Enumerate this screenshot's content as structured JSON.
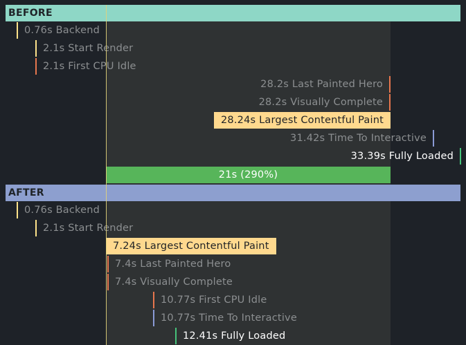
{
  "colors": {
    "before_header": "#8ed7c6",
    "after_header": "#8d9fcf",
    "delta_bar": "#57b55a",
    "highlight": "#ffd98e",
    "tick_yellow": "#ffe38a",
    "tick_orange": "#e8774e",
    "tick_blue": "#8b9bd6",
    "tick_green": "#46c27a"
  },
  "before": {
    "title": "BEFORE",
    "metrics": [
      {
        "label": "0.76s Backend",
        "time": 0.76,
        "tick": "yellow",
        "side": "right",
        "style": "dim"
      },
      {
        "label": "2.1s Start Render",
        "time": 2.1,
        "tick": "yellow",
        "side": "right",
        "style": "dim"
      },
      {
        "label": "2.1s First CPU Idle",
        "time": 2.1,
        "tick": "orange",
        "side": "right",
        "style": "dim"
      },
      {
        "label": "28.2s Last Painted Hero",
        "time": 28.2,
        "tick": "orange",
        "side": "left",
        "style": "dim"
      },
      {
        "label": "28.2s Visually Complete",
        "time": 28.2,
        "tick": "orange",
        "side": "left",
        "style": "dim"
      },
      {
        "label": "28.24s Largest Contentful Paint",
        "time": 28.24,
        "tick": "none",
        "side": "left",
        "style": "highlight"
      },
      {
        "label": "31.42s Time To Interactive",
        "time": 31.42,
        "tick": "blue",
        "side": "left",
        "style": "dim"
      },
      {
        "label": "33.39s Fully Loaded",
        "time": 33.39,
        "tick": "green",
        "side": "left",
        "style": "bright"
      }
    ]
  },
  "delta": {
    "label": "21s (290%)",
    "from": 7.24,
    "to": 28.24
  },
  "after": {
    "title": "AFTER",
    "metrics": [
      {
        "label": "0.76s Backend",
        "time": 0.76,
        "tick": "yellow",
        "side": "right",
        "style": "dim"
      },
      {
        "label": "2.1s Start Render",
        "time": 2.1,
        "tick": "yellow",
        "side": "right",
        "style": "dim"
      },
      {
        "label": "7.24s Largest Contentful Paint",
        "time": 7.24,
        "tick": "none",
        "side": "right",
        "style": "highlight"
      },
      {
        "label": "7.4s Last Painted Hero",
        "time": 7.4,
        "tick": "orange",
        "side": "right",
        "style": "dim"
      },
      {
        "label": "7.4s Visually Complete",
        "time": 7.4,
        "tick": "orange",
        "side": "right",
        "style": "dim"
      },
      {
        "label": "10.77s First CPU Idle",
        "time": 10.77,
        "tick": "orange",
        "side": "right",
        "style": "dim"
      },
      {
        "label": "10.77s Time To Interactive",
        "time": 10.77,
        "tick": "blue",
        "side": "right",
        "style": "dim"
      },
      {
        "label": "12.41s Fully Loaded",
        "time": 12.41,
        "tick": "green",
        "side": "right",
        "style": "bright"
      }
    ]
  }
}
